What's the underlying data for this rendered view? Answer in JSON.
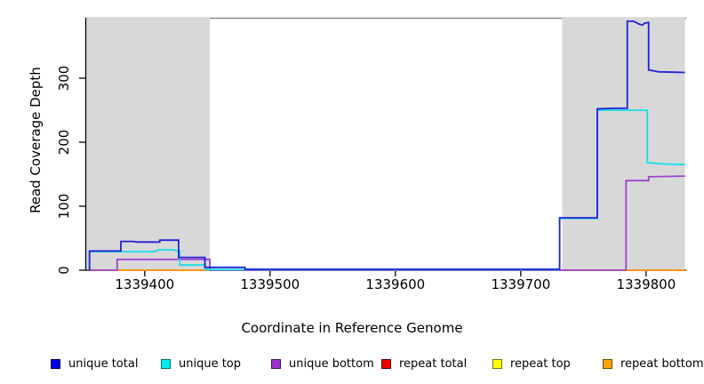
{
  "chart_data": {
    "type": "line",
    "title": "",
    "xlabel": "Coordinate in Reference Genome",
    "ylabel": "Read Coverage Depth",
    "xlim": [
      1339353,
      1339832
    ],
    "ylim": [
      0,
      393
    ],
    "x_ticks": [
      1339400,
      1339500,
      1339600,
      1339700,
      1339800
    ],
    "y_ticks": [
      0,
      100,
      200,
      300
    ],
    "grid": false,
    "legend_position": "bottom",
    "highlight_color": "#d8d8d8",
    "highlight_regions": [
      {
        "start": 1339353,
        "end": 1339452
      },
      {
        "start": 1339733,
        "end": 1339831
      }
    ],
    "series": [
      {
        "name": "unique total",
        "color": "#2222d3",
        "points": [
          [
            1339356,
            0
          ],
          [
            1339356,
            30
          ],
          [
            1339381,
            30
          ],
          [
            1339381,
            45
          ],
          [
            1339391,
            45
          ],
          [
            1339394,
            44
          ],
          [
            1339412,
            44
          ],
          [
            1339412,
            47
          ],
          [
            1339427,
            47
          ],
          [
            1339427,
            20
          ],
          [
            1339448,
            20
          ],
          [
            1339448,
            4.5
          ],
          [
            1339480,
            4.5
          ],
          [
            1339480,
            1.5
          ],
          [
            1339731,
            1.5
          ],
          [
            1339731,
            82
          ],
          [
            1339761,
            82
          ],
          [
            1339761,
            252
          ],
          [
            1339774,
            253
          ],
          [
            1339785,
            253
          ],
          [
            1339785,
            389
          ],
          [
            1339790,
            389
          ],
          [
            1339794,
            385
          ],
          [
            1339797,
            383
          ],
          [
            1339799,
            386
          ],
          [
            1339802,
            387
          ],
          [
            1339802,
            313
          ],
          [
            1339810,
            310
          ],
          [
            1339831,
            309
          ]
        ]
      },
      {
        "name": "unique top",
        "color": "#17dce6",
        "points": [
          [
            1339356,
            0
          ],
          [
            1339356,
            29
          ],
          [
            1339408,
            29
          ],
          [
            1339411,
            32
          ],
          [
            1339423,
            32
          ],
          [
            1339426,
            30
          ],
          [
            1339428,
            30
          ],
          [
            1339428,
            8
          ],
          [
            1339448,
            8
          ],
          [
            1339448,
            1
          ],
          [
            1339731,
            1
          ],
          [
            1339731,
            81
          ],
          [
            1339761,
            81
          ],
          [
            1339761,
            250
          ],
          [
            1339801,
            250
          ],
          [
            1339801,
            168
          ],
          [
            1339815,
            166
          ],
          [
            1339831,
            165
          ]
        ]
      },
      {
        "name": "unique bottom",
        "color": "#9b45cf",
        "points": [
          [
            1339356,
            0
          ],
          [
            1339378,
            0
          ],
          [
            1339378,
            17
          ],
          [
            1339452,
            17
          ],
          [
            1339452,
            0
          ],
          [
            1339784,
            0
          ],
          [
            1339784,
            140
          ],
          [
            1339802,
            140
          ],
          [
            1339802,
            146
          ],
          [
            1339831,
            147
          ]
        ]
      },
      {
        "name": "repeat total",
        "color": "#e60000",
        "points": [
          [
            1339356,
            0
          ],
          [
            1339831,
            0
          ]
        ]
      },
      {
        "name": "repeat top",
        "color": "#ffee00",
        "points": [
          [
            1339356,
            0
          ],
          [
            1339831,
            0
          ]
        ]
      },
      {
        "name": "repeat bottom",
        "color": "#ffa319",
        "points": [
          [
            1339356,
            0
          ],
          [
            1339831,
            0
          ]
        ]
      }
    ],
    "draw_order": [
      4,
      3,
      5,
      2,
      1,
      0
    ]
  },
  "legend": {
    "items": [
      {
        "label": "unique total",
        "color": "#0000e6"
      },
      {
        "label": "unique top",
        "color": "#00eeee"
      },
      {
        "label": "unique bottom",
        "color": "#9932cc"
      },
      {
        "label": "repeat total",
        "color": "#ee0000"
      },
      {
        "label": "repeat top",
        "color": "#ffff00"
      },
      {
        "label": "repeat bottom",
        "color": "#ffa500"
      }
    ]
  }
}
